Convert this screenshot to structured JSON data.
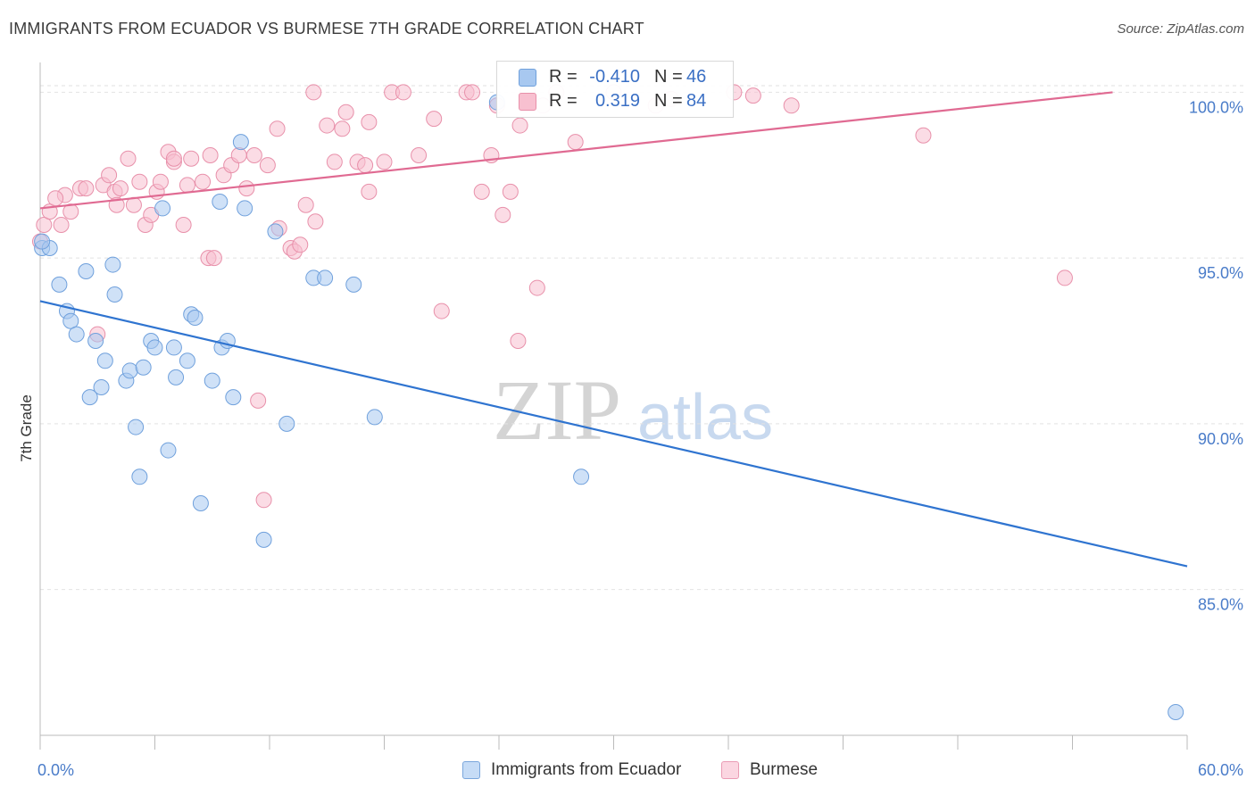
{
  "title": "IMMIGRANTS FROM ECUADOR VS BURMESE 7TH GRADE CORRELATION CHART",
  "source": "Source: ZipAtlas.com",
  "watermark": {
    "zip": "ZIP",
    "atlas": "atlas"
  },
  "legend_stats": [
    {
      "r_label": "R =",
      "r_value": "-0.410",
      "n_label": "N =",
      "n_value": "46",
      "color": "#a8c8f0",
      "border": "#6fa0dc"
    },
    {
      "r_label": "R =",
      "r_value": "0.319",
      "n_label": "N =",
      "n_value": "84",
      "color": "#f8c0d0",
      "border": "#e890aa"
    }
  ],
  "legend_bottom": [
    {
      "label": "Immigrants from Ecuador",
      "color": "#c6dcf6",
      "border": "#7aa6dc"
    },
    {
      "label": "Burmese",
      "color": "#fbd6e1",
      "border": "#ea9cb4"
    }
  ],
  "chart_data": {
    "type": "scatter",
    "title": "IMMIGRANTS FROM ECUADOR VS BURMESE 7TH GRADE CORRELATION CHART",
    "xlabel": "",
    "ylabel": "7th Grade",
    "xlim": [
      0,
      60
    ],
    "ylim": [
      80.6,
      100.9
    ],
    "x_tick_labels": [
      "0.0%",
      "60.0%"
    ],
    "y_ticks": [
      85,
      90,
      95,
      100
    ],
    "y_tick_labels": [
      "85.0%",
      "90.0%",
      "95.0%",
      "100.0%"
    ],
    "grid": true,
    "legend_position": "top-center",
    "series": [
      {
        "name": "Immigrants from Ecuador",
        "color": "#6fa0dc",
        "fill": "#a8c8f0",
        "trend": {
          "x": [
            0,
            60
          ],
          "y": [
            93.7,
            85.7
          ],
          "color": "#2f74d0"
        },
        "points": [
          [
            0.1,
            95.3
          ],
          [
            0.5,
            95.3
          ],
          [
            1.0,
            94.2
          ],
          [
            2.4,
            94.6
          ],
          [
            3.8,
            94.8
          ],
          [
            1.4,
            93.4
          ],
          [
            1.6,
            93.1
          ],
          [
            1.9,
            92.7
          ],
          [
            2.9,
            92.5
          ],
          [
            3.9,
            93.9
          ],
          [
            3.4,
            91.9
          ],
          [
            3.2,
            91.1
          ],
          [
            2.6,
            90.8
          ],
          [
            4.5,
            91.3
          ],
          [
            4.7,
            91.6
          ],
          [
            5.4,
            91.7
          ],
          [
            5.8,
            92.5
          ],
          [
            6.0,
            92.3
          ],
          [
            7.0,
            92.3
          ],
          [
            7.1,
            91.4
          ],
          [
            7.7,
            91.9
          ],
          [
            7.9,
            93.3
          ],
          [
            8.1,
            93.2
          ],
          [
            9.0,
            91.3
          ],
          [
            9.5,
            92.3
          ],
          [
            9.8,
            92.5
          ],
          [
            10.1,
            90.8
          ],
          [
            5.0,
            89.9
          ],
          [
            5.2,
            88.4
          ],
          [
            6.7,
            89.2
          ],
          [
            8.4,
            87.6
          ],
          [
            11.7,
            86.5
          ],
          [
            12.9,
            90.0
          ],
          [
            14.3,
            94.4
          ],
          [
            14.9,
            94.4
          ],
          [
            16.4,
            94.2
          ],
          [
            17.5,
            90.2
          ],
          [
            6.4,
            96.5
          ],
          [
            9.4,
            96.7
          ],
          [
            10.7,
            96.5
          ],
          [
            12.3,
            95.8
          ],
          [
            10.5,
            98.5
          ],
          [
            23.9,
            99.7
          ],
          [
            28.3,
            88.4
          ],
          [
            59.4,
            81.3
          ],
          [
            0.1,
            95.5
          ]
        ]
      },
      {
        "name": "Burmese",
        "color": "#e890aa",
        "fill": "#f8c0d0",
        "trend": {
          "x": [
            0,
            56.1
          ],
          "y": [
            96.5,
            100.0
          ],
          "color": "#e06a92"
        },
        "points": [
          [
            0.2,
            96.0
          ],
          [
            0.5,
            96.4
          ],
          [
            1.1,
            96.0
          ],
          [
            1.3,
            96.9
          ],
          [
            1.6,
            96.4
          ],
          [
            0.8,
            96.8
          ],
          [
            2.1,
            97.1
          ],
          [
            2.4,
            97.1
          ],
          [
            3.3,
            97.2
          ],
          [
            3.6,
            97.5
          ],
          [
            3.9,
            97.0
          ],
          [
            4.0,
            96.6
          ],
          [
            4.2,
            97.1
          ],
          [
            4.6,
            98.0
          ],
          [
            4.9,
            96.6
          ],
          [
            5.2,
            97.3
          ],
          [
            5.5,
            96.0
          ],
          [
            5.8,
            96.3
          ],
          [
            6.1,
            97.0
          ],
          [
            6.3,
            97.3
          ],
          [
            6.7,
            98.2
          ],
          [
            7.0,
            97.9
          ],
          [
            7.5,
            96.0
          ],
          [
            7.7,
            97.2
          ],
          [
            7.9,
            98.0
          ],
          [
            8.5,
            97.3
          ],
          [
            8.9,
            98.1
          ],
          [
            9.6,
            97.5
          ],
          [
            10.0,
            97.8
          ],
          [
            10.4,
            98.1
          ],
          [
            10.8,
            97.1
          ],
          [
            11.2,
            98.1
          ],
          [
            11.9,
            97.8
          ],
          [
            12.4,
            98.9
          ],
          [
            13.1,
            95.3
          ],
          [
            13.3,
            95.2
          ],
          [
            13.6,
            95.4
          ],
          [
            13.9,
            96.6
          ],
          [
            14.3,
            100.0
          ],
          [
            15.4,
            97.9
          ],
          [
            15.0,
            99.0
          ],
          [
            15.8,
            98.9
          ],
          [
            16.0,
            99.4
          ],
          [
            16.6,
            97.9
          ],
          [
            17.0,
            97.8
          ],
          [
            17.2,
            99.1
          ],
          [
            18.0,
            97.9
          ],
          [
            18.4,
            100.0
          ],
          [
            19.0,
            100.0
          ],
          [
            19.8,
            98.1
          ],
          [
            20.6,
            99.2
          ],
          [
            22.3,
            100.0
          ],
          [
            22.6,
            100.0
          ],
          [
            23.1,
            97.0
          ],
          [
            23.6,
            98.1
          ],
          [
            23.9,
            99.6
          ],
          [
            24.2,
            96.3
          ],
          [
            24.6,
            97.0
          ],
          [
            25.1,
            99.0
          ],
          [
            25.5,
            100.0
          ],
          [
            26.3,
            99.6
          ],
          [
            27.0,
            100.0
          ],
          [
            28.0,
            98.5
          ],
          [
            30.0,
            100.0
          ],
          [
            32.2,
            99.6
          ],
          [
            33.0,
            99.8
          ],
          [
            36.3,
            100.0
          ],
          [
            37.3,
            99.9
          ],
          [
            39.3,
            99.6
          ],
          [
            46.2,
            98.7
          ],
          [
            53.6,
            94.4
          ],
          [
            26.0,
            94.1
          ],
          [
            21.0,
            93.4
          ],
          [
            25.0,
            92.5
          ],
          [
            3.0,
            92.7
          ],
          [
            11.4,
            90.7
          ],
          [
            11.7,
            87.7
          ],
          [
            14.4,
            96.1
          ],
          [
            8.8,
            95.0
          ],
          [
            9.1,
            95.0
          ],
          [
            12.5,
            95.9
          ],
          [
            17.2,
            97.0
          ],
          [
            7.0,
            98.0
          ],
          [
            0.0,
            95.5
          ]
        ]
      }
    ]
  }
}
